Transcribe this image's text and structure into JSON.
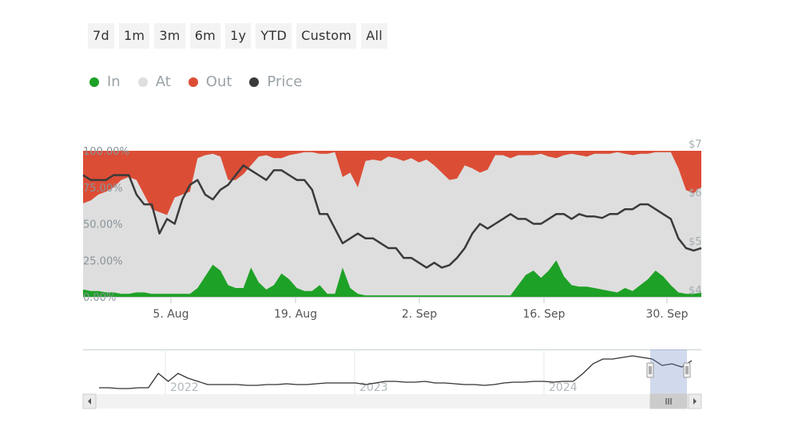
{
  "range_selector": {
    "buttons": [
      "7d",
      "1m",
      "3m",
      "6m",
      "1y",
      "YTD",
      "Custom",
      "All"
    ]
  },
  "legend": [
    {
      "label": "In",
      "color": "#1ea127"
    },
    {
      "label": "At",
      "color": "#dedede"
    },
    {
      "label": "Out",
      "color": "#dc4d36"
    },
    {
      "label": "Price",
      "color": "#3a3a3a"
    }
  ],
  "chart_data": {
    "type": "area",
    "stacked_percent": true,
    "x_ticks": [
      "5. Aug",
      "19. Aug",
      "2. Sep",
      "16. Sep",
      "30. Sep"
    ],
    "y_left_ticks": [
      "0.00%",
      "25.00%",
      "50.00%",
      "75.00%",
      "100.00%"
    ],
    "y_right_ticks": [
      "$4",
      "$5",
      "$6",
      "$7"
    ],
    "ylim_left": [
      0,
      100
    ],
    "ylim_right": [
      4,
      7
    ],
    "series": [
      {
        "name": "In",
        "values": [
          5,
          4,
          4,
          3,
          3,
          2,
          2,
          3,
          3,
          2,
          2,
          2,
          2,
          2,
          2,
          6,
          14,
          22,
          18,
          8,
          6,
          6,
          20,
          10,
          5,
          8,
          16,
          12,
          6,
          4,
          4,
          8,
          2,
          2,
          20,
          6,
          2,
          1,
          1,
          1,
          1,
          1,
          1,
          1,
          1,
          1,
          1,
          1,
          1,
          1,
          1,
          1,
          1,
          1,
          1,
          1,
          1,
          8,
          15,
          18,
          13,
          18,
          25,
          14,
          8,
          7,
          7,
          6,
          5,
          4,
          3,
          6,
          4,
          8,
          12,
          18,
          14,
          8,
          3,
          2,
          2,
          3
        ]
      },
      {
        "name": "Out",
        "values": [
          36,
          34,
          30,
          28,
          25,
          20,
          18,
          20,
          30,
          40,
          42,
          44,
          32,
          30,
          28,
          5,
          3,
          2,
          4,
          20,
          20,
          16,
          10,
          4,
          3,
          5,
          5,
          3,
          2,
          1,
          1,
          2,
          2,
          1,
          18,
          15,
          25,
          7,
          6,
          7,
          4,
          5,
          7,
          5,
          8,
          6,
          10,
          15,
          20,
          19,
          10,
          12,
          15,
          13,
          3,
          3,
          5,
          3,
          3,
          3,
          2,
          4,
          5,
          3,
          2,
          3,
          4,
          2,
          2,
          2,
          1,
          2,
          3,
          2,
          2,
          1,
          1,
          1,
          12,
          27,
          29,
          25
        ]
      },
      {
        "name": "Price",
        "axis": "right",
        "values": [
          6.5,
          6.4,
          6.4,
          6.4,
          6.5,
          6.5,
          6.5,
          6.1,
          5.9,
          5.9,
          5.3,
          5.6,
          5.5,
          6.0,
          6.3,
          6.4,
          6.1,
          6.0,
          6.2,
          6.3,
          6.5,
          6.7,
          6.6,
          6.5,
          6.4,
          6.6,
          6.6,
          6.5,
          6.4,
          6.4,
          6.2,
          5.7,
          5.7,
          5.4,
          5.1,
          5.2,
          5.3,
          5.2,
          5.2,
          5.1,
          5.0,
          5.0,
          4.8,
          4.8,
          4.7,
          4.6,
          4.7,
          4.6,
          4.65,
          4.8,
          5.0,
          5.3,
          5.5,
          5.4,
          5.5,
          5.6,
          5.7,
          5.6,
          5.6,
          5.5,
          5.5,
          5.6,
          5.7,
          5.7,
          5.6,
          5.7,
          5.65,
          5.65,
          5.62,
          5.7,
          5.7,
          5.8,
          5.8,
          5.9,
          5.9,
          5.8,
          5.7,
          5.6,
          5.2,
          5.0,
          4.95,
          5.0
        ]
      }
    ]
  },
  "navigator": {
    "year_labels": [
      "2022",
      "2023",
      "2024"
    ],
    "price_history": [
      4.0,
      4.0,
      3.95,
      3.95,
      4.0,
      4.0,
      4.9,
      4.4,
      4.9,
      4.6,
      4.4,
      4.2,
      4.2,
      4.2,
      4.2,
      4.15,
      4.15,
      4.2,
      4.2,
      4.25,
      4.2,
      4.2,
      4.25,
      4.3,
      4.3,
      4.3,
      4.3,
      4.2,
      4.3,
      4.4,
      4.4,
      4.35,
      4.35,
      4.4,
      4.3,
      4.3,
      4.25,
      4.2,
      4.2,
      4.15,
      4.2,
      4.3,
      4.35,
      4.35,
      4.4,
      4.4,
      4.35,
      4.4,
      4.4,
      4.9,
      5.5,
      5.8,
      5.8,
      5.9,
      6.0,
      5.9,
      5.8,
      5.4,
      5.5,
      5.3,
      5.7
    ]
  }
}
